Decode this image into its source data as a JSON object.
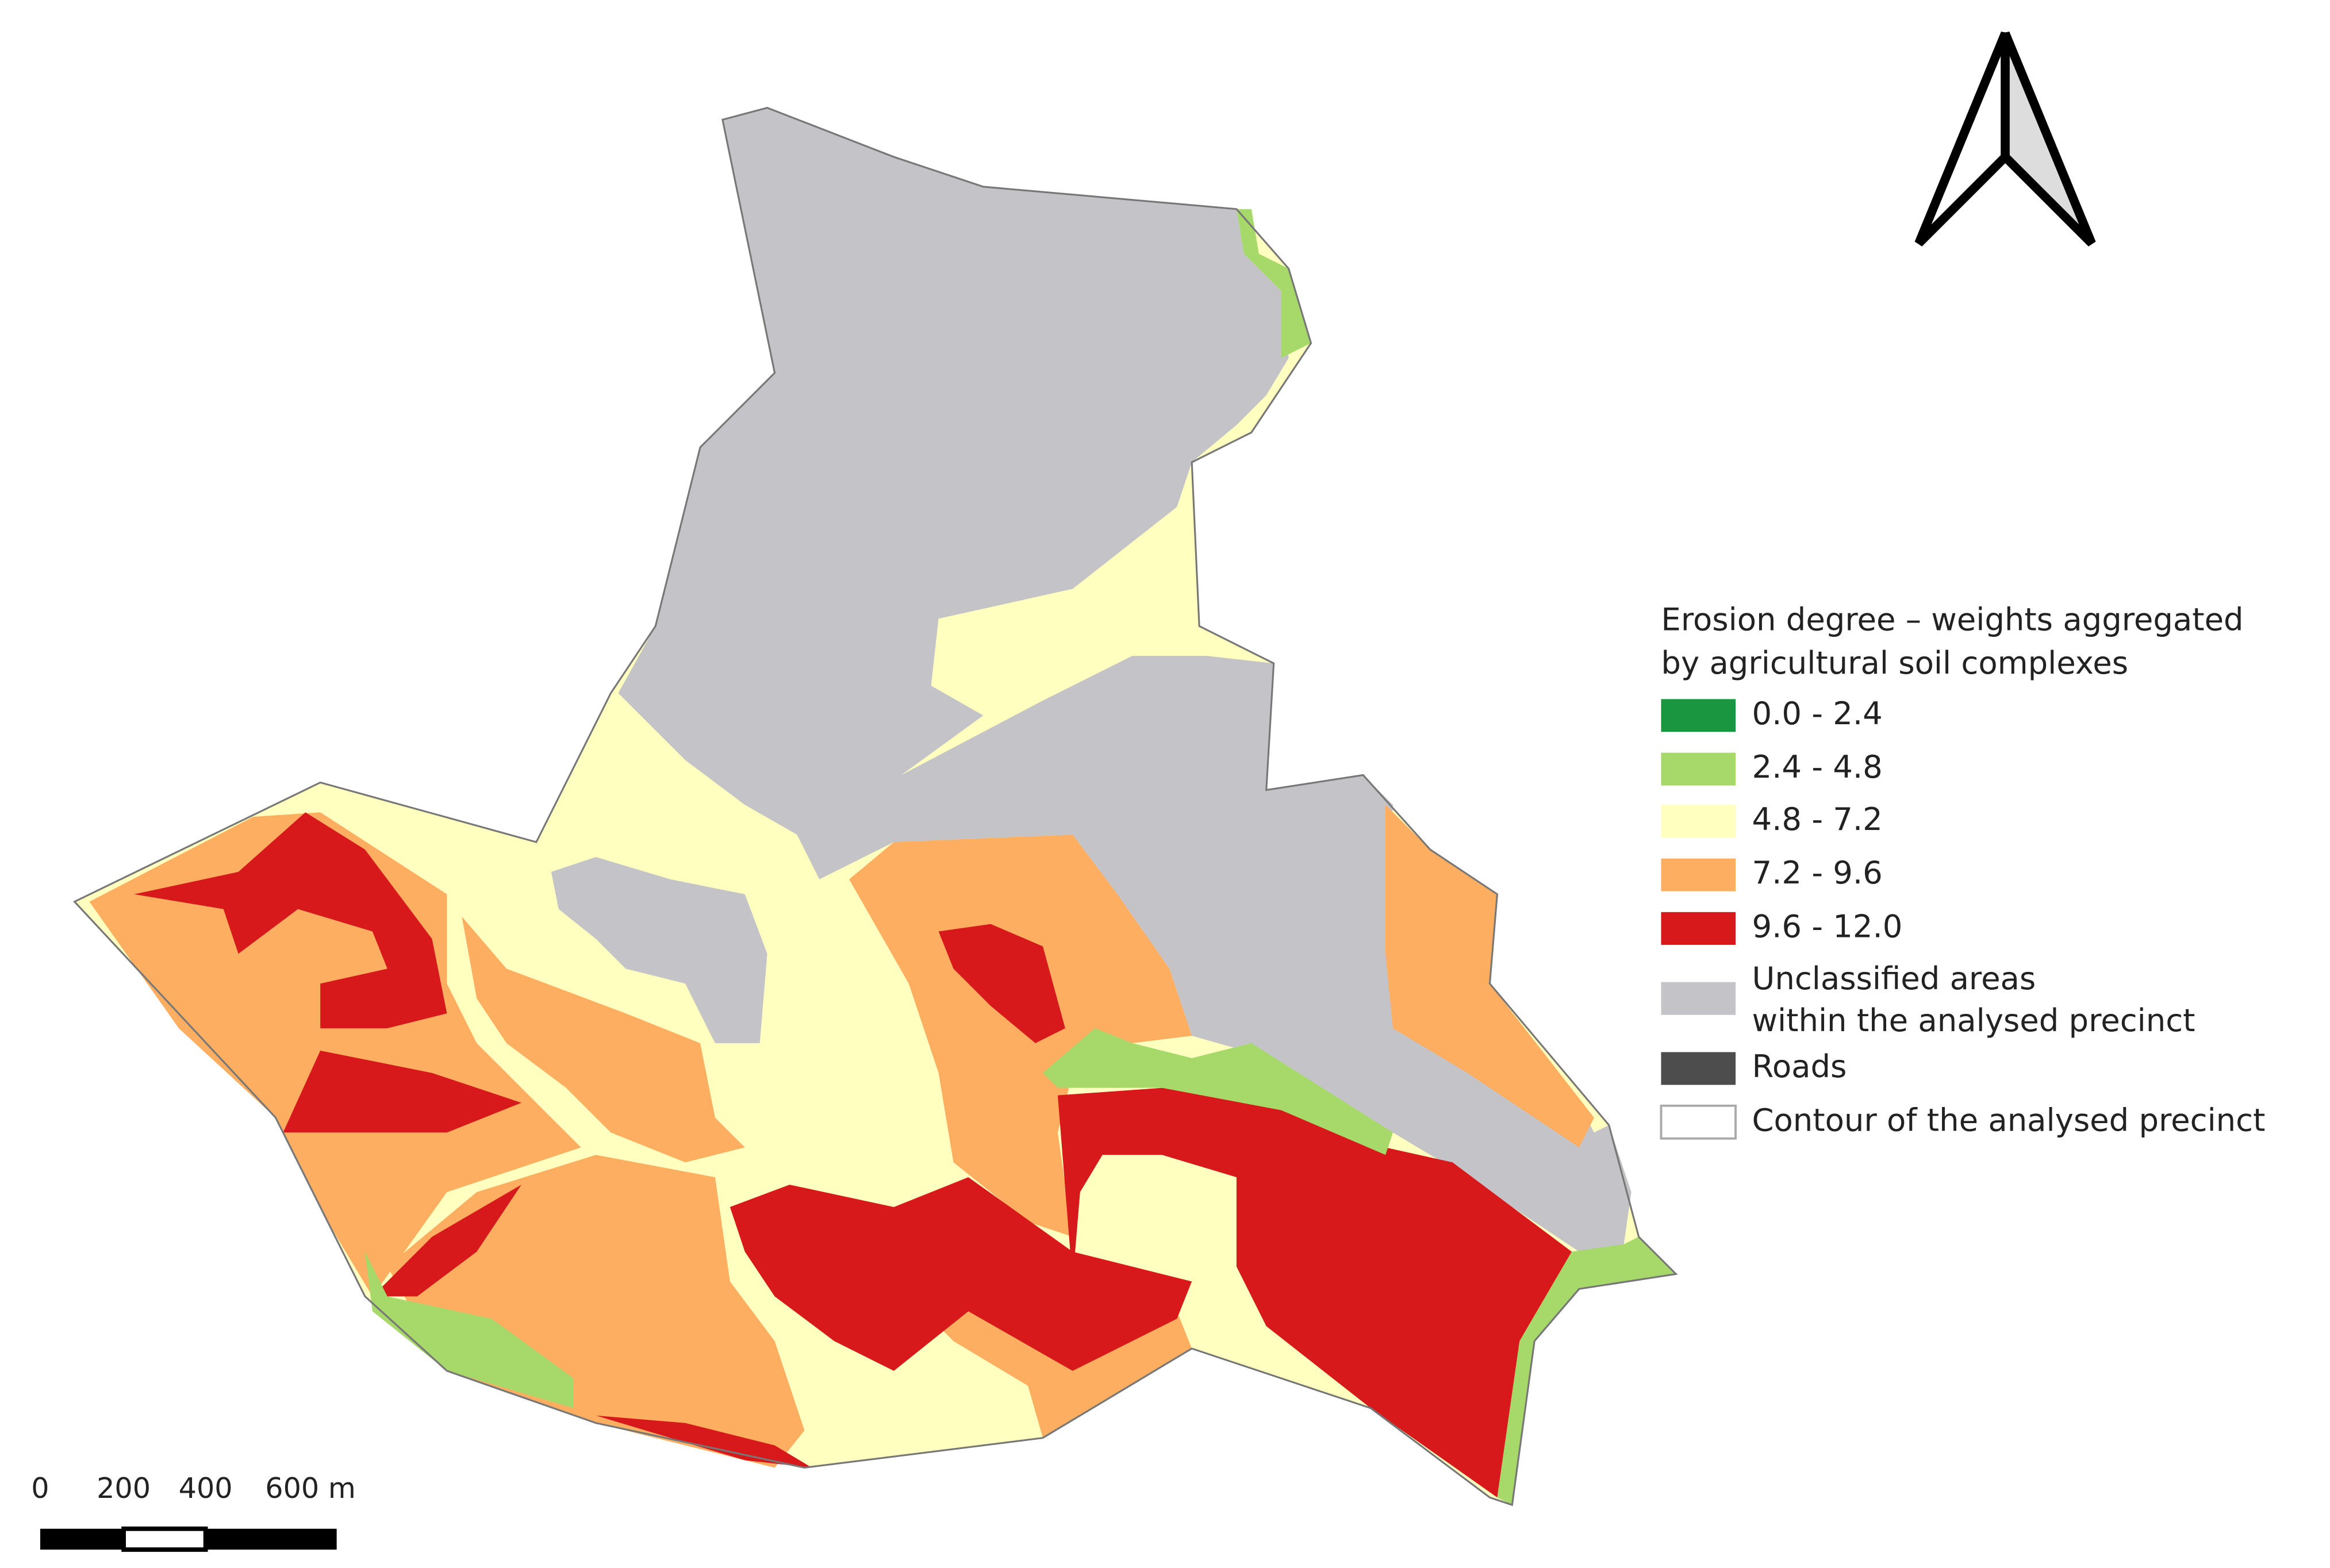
{
  "legend": {
    "title_lines": [
      "Erosion degree – weights aggregated",
      "by agricultural soil complexes"
    ],
    "items": [
      {
        "label_lines": [
          "0.0 - 2.4"
        ],
        "color": "#1a9641"
      },
      {
        "label_lines": [
          "2.4 - 4.8"
        ],
        "color": "#a6d96a"
      },
      {
        "label_lines": [
          "4.8 - 7.2"
        ],
        "color": "#ffffc0"
      },
      {
        "label_lines": [
          "7.2 - 9.6"
        ],
        "color": "#fdae61"
      },
      {
        "label_lines": [
          "9.6 - 12.0"
        ],
        "color": "#d7191c"
      },
      {
        "label_lines": [
          "Unclassified areas",
          "within the analysed precinct"
        ],
        "color": "#c3c3c8"
      },
      {
        "label_lines": [
          "Roads"
        ],
        "color": "#4d4d4d"
      },
      {
        "label_lines": [
          "Contour of the analysed precinct"
        ],
        "color": "#ffffff"
      }
    ]
  },
  "scale_bar": {
    "labels": [
      "0",
      "200",
      "400",
      "600 m"
    ]
  }
}
